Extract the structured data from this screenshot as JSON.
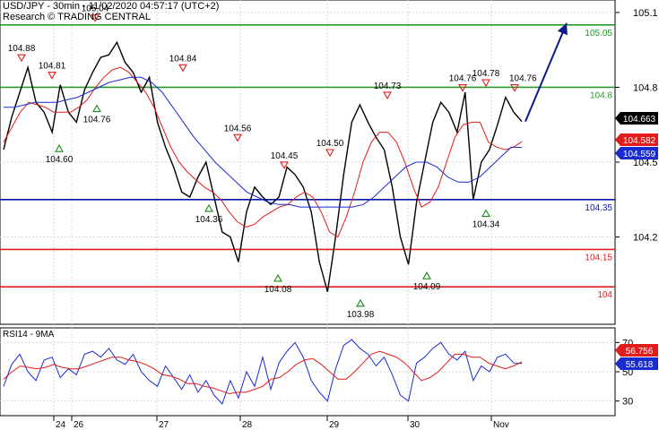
{
  "header": {
    "line1": "USD/JPY - 30min - 11/02/2020 04:57:17 (UTC+2)",
    "line2": "Research © TRADING CENTRAL"
  },
  "rsi_panel": {
    "title": "RSI14 - 9MA"
  },
  "colors": {
    "resistance": "#2a9a2a",
    "pivot": "#0b18a8",
    "support": "#e21b1b",
    "price": "#000000",
    "ma_fast": "#e21b1b",
    "ma_slow": "#1a2bd0",
    "arrow": "#0b1a8c",
    "grid": "#d8d8d8"
  },
  "chart_data": [
    {
      "type": "line",
      "title": "USD/JPY - 30min - 11/02/2020 04:57:17 (UTC+2)",
      "ylim": [
        103.85,
        105.15
      ],
      "y_ticks": [
        "105.1",
        "104.8",
        "104.5",
        "104.2"
      ],
      "x_ticks": [
        "24",
        "26",
        "27",
        "28",
        "29",
        "30",
        "Nov"
      ],
      "series": [
        {
          "values": [
            104.55,
            104.68,
            104.78,
            104.88,
            104.74,
            104.7,
            104.62,
            104.81,
            104.7,
            104.66,
            104.79,
            104.86,
            104.92,
            104.93,
            104.98,
            104.9,
            104.86,
            104.78,
            104.84,
            104.66,
            104.56,
            104.48,
            104.38,
            104.36,
            104.44,
            104.5,
            104.36,
            104.22,
            104.2,
            104.1,
            104.3,
            104.4,
            104.36,
            104.33,
            104.36,
            104.48,
            104.45,
            104.4,
            104.3,
            104.1,
            103.98,
            104.2,
            104.45,
            104.66,
            104.73,
            104.66,
            104.6,
            104.55,
            104.4,
            104.2,
            104.09,
            104.34,
            104.5,
            104.66,
            104.74,
            104.7,
            104.62,
            104.78,
            104.35,
            104.5,
            104.55,
            104.65,
            104.76,
            104.7,
            104.663
          ]
        },
        {
          "values": [
            104.58,
            104.64,
            104.7,
            104.74,
            104.73,
            104.72,
            104.7,
            104.7,
            104.7,
            104.72,
            104.75,
            104.8,
            104.84,
            104.87,
            104.88,
            104.86,
            104.82,
            104.78,
            104.72,
            104.64,
            104.56,
            104.5,
            104.46,
            104.43,
            104.4,
            104.38,
            104.35,
            104.3,
            104.26,
            104.24,
            104.25,
            104.28,
            104.3,
            104.32,
            104.33,
            104.36,
            104.38,
            104.36,
            104.3,
            104.22,
            104.2,
            104.28,
            104.38,
            104.5,
            104.58,
            104.62,
            104.62,
            104.58,
            104.5,
            104.4,
            104.32,
            104.34,
            104.4,
            104.5,
            104.6,
            104.65,
            104.66,
            104.66,
            104.58,
            104.56,
            104.55,
            104.56,
            104.582
          ]
        },
        {
          "values": [
            104.72,
            104.72,
            104.73,
            104.74,
            104.74,
            104.74,
            104.75,
            104.76,
            104.78,
            104.8,
            104.82,
            104.83,
            104.84,
            104.84,
            104.82,
            104.78,
            104.72,
            104.66,
            104.6,
            104.55,
            104.5,
            104.46,
            104.42,
            104.38,
            104.36,
            104.34,
            104.33,
            104.33,
            104.32,
            104.32,
            104.32,
            104.32,
            104.32,
            104.32,
            104.33,
            104.36,
            104.4,
            104.44,
            104.48,
            104.5,
            104.5,
            104.48,
            104.44,
            104.42,
            104.42,
            104.44,
            104.48,
            104.52,
            104.56,
            104.559
          ]
        }
      ],
      "levels": [
        {
          "value": 105.05,
          "label": "105.05",
          "kind": "resistance"
        },
        {
          "value": 104.8,
          "label": "104.8",
          "kind": "resistance"
        },
        {
          "value": 104.35,
          "label": "104.35",
          "kind": "pivot"
        },
        {
          "value": 104.15,
          "label": "104.15",
          "kind": "support"
        },
        {
          "value": 104.0,
          "label": "104",
          "kind": "support"
        }
      ],
      "price_tags": [
        {
          "label": "104.663",
          "kind": "last"
        },
        {
          "label": "104.582",
          "kind": "ma_fast"
        },
        {
          "label": "104.559",
          "kind": "ma_slow"
        }
      ],
      "swing_labels": [
        {
          "label": "104.88",
          "type": "high",
          "value": 104.88
        },
        {
          "label": "104.81",
          "type": "high",
          "value": 104.81
        },
        {
          "label": "105.04",
          "type": "high",
          "value": 105.04
        },
        {
          "label": "104.84",
          "type": "high",
          "value": 104.84
        },
        {
          "label": "104.56",
          "type": "high",
          "value": 104.56
        },
        {
          "label": "104.45",
          "type": "high",
          "value": 104.45
        },
        {
          "label": "104.50",
          "type": "high",
          "value": 104.5
        },
        {
          "label": "104.73",
          "type": "high",
          "value": 104.73
        },
        {
          "label": "104.76",
          "type": "high",
          "value": 104.76
        },
        {
          "label": "104.78",
          "type": "high",
          "value": 104.78
        },
        {
          "label": "104.76",
          "type": "high",
          "value": 104.76
        },
        {
          "label": "104.60",
          "type": "low",
          "value": 104.6
        },
        {
          "label": "104.76",
          "type": "low",
          "value": 104.76
        },
        {
          "label": "104.36",
          "type": "low",
          "value": 104.36
        },
        {
          "label": "104.08",
          "type": "low",
          "value": 104.08
        },
        {
          "label": "103.98",
          "type": "low",
          "value": 103.98
        },
        {
          "label": "104.09",
          "type": "low",
          "value": 104.09
        },
        {
          "label": "104.34",
          "type": "low",
          "value": 104.34
        }
      ],
      "projection_target": 105.05
    },
    {
      "type": "line",
      "title": "RSI14 - 9MA",
      "ylim": [
        20,
        80
      ],
      "y_ticks": [
        "70",
        "50",
        "30"
      ],
      "series": [
        {
          "values": [
            40,
            55,
            62,
            50,
            44,
            58,
            60,
            46,
            52,
            48,
            62,
            64,
            60,
            66,
            58,
            55,
            62,
            50,
            44,
            40,
            54,
            46,
            38,
            48,
            36,
            44,
            34,
            28,
            44,
            32,
            50,
            40,
            60,
            38,
            56,
            64,
            70,
            60,
            44,
            36,
            30,
            52,
            68,
            72,
            66,
            62,
            54,
            60,
            48,
            34,
            30,
            56,
            60,
            66,
            70,
            62,
            58,
            64,
            44,
            54,
            50,
            60,
            62,
            56,
            55.618
          ]
        },
        {
          "values": [
            45,
            50,
            54,
            53,
            52,
            53,
            55,
            53,
            52,
            52,
            54,
            56,
            58,
            60,
            60,
            58,
            57,
            55,
            52,
            48,
            47,
            45,
            42,
            42,
            40,
            39,
            37,
            35,
            36,
            36,
            38,
            40,
            45,
            46,
            50,
            55,
            58,
            59,
            55,
            50,
            45,
            45,
            50,
            56,
            62,
            64,
            62,
            60,
            56,
            50,
            44,
            46,
            50,
            56,
            62,
            62,
            60,
            60,
            56,
            54,
            52,
            54,
            56.756
          ]
        }
      ],
      "price_tags": [
        {
          "label": "56.756",
          "kind": "ma"
        },
        {
          "label": "55.618",
          "kind": "rsi"
        }
      ]
    }
  ]
}
